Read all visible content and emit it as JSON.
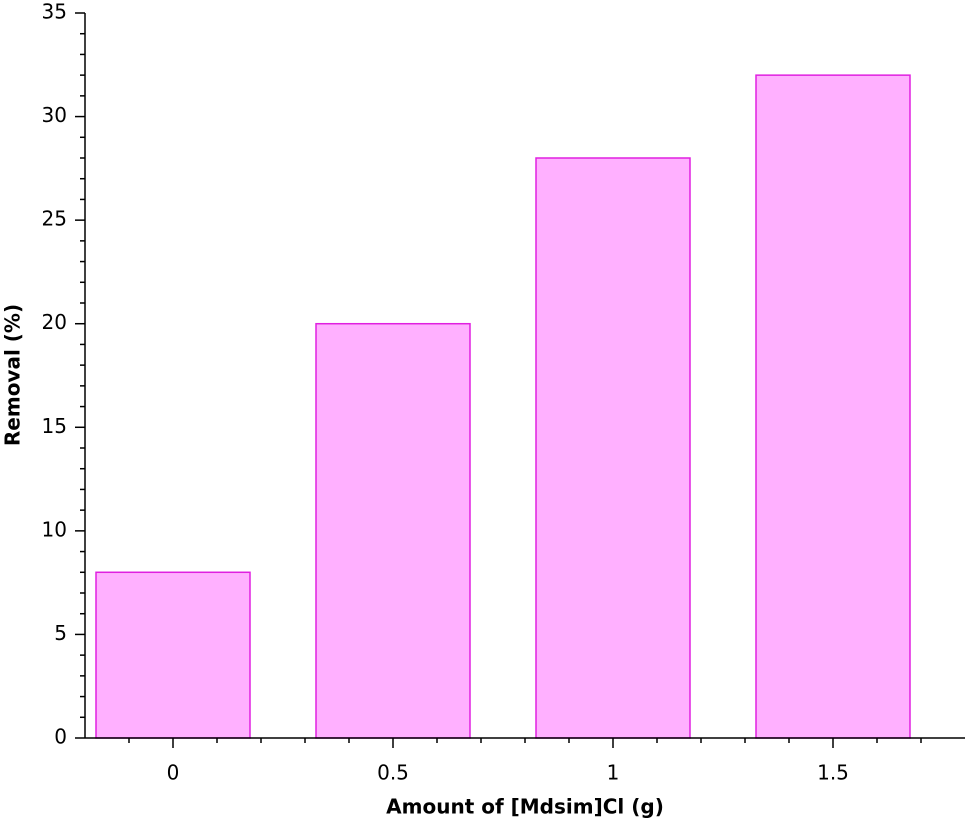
{
  "chart_data": {
    "type": "bar",
    "x_label": "Amount of [Mdsim]Cl (g)",
    "y_label": "Removal (%)",
    "x": [
      0,
      0.5,
      1,
      1.5
    ],
    "values": [
      8,
      20,
      28,
      32
    ],
    "color": "#ffb0ff",
    "edge_color": "#e020e0",
    "xlim": [
      -0.2,
      1.8
    ],
    "xticks": [
      0,
      0.5,
      1,
      1.5
    ],
    "xminorticks": [
      -0.1,
      0.1,
      0.2,
      0.3,
      0.4,
      0.6,
      0.7,
      0.8,
      0.9,
      1.1,
      1.2,
      1.3,
      1.4,
      1.6,
      1.7
    ],
    "ylim": [
      0,
      35
    ],
    "yticks": [
      0,
      5,
      10,
      15,
      20,
      25,
      30,
      35
    ],
    "yminorticks": [
      1,
      2,
      3,
      4,
      6,
      7,
      8,
      9,
      11,
      12,
      13,
      14,
      16,
      17,
      18,
      19,
      21,
      22,
      23,
      24,
      26,
      27,
      28,
      29,
      31,
      32,
      33,
      34
    ],
    "grid": false
  }
}
